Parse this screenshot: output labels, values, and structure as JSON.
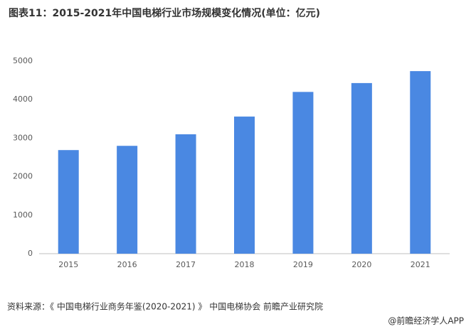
{
  "chart_data": {
    "type": "bar",
    "title": "图表11：2015-2021年中国电梯行业市场规模变化情况(单位：亿元)",
    "categories": [
      "2015",
      "2016",
      "2017",
      "2018",
      "2019",
      "2020",
      "2021"
    ],
    "values": [
      2690,
      2800,
      3100,
      3560,
      4200,
      4430,
      4740
    ],
    "color": "#4a88e2",
    "ylim": [
      0,
      5000
    ],
    "yticks": [
      0,
      1000,
      2000,
      3000,
      4000,
      5000
    ],
    "grid": false,
    "source": "资料来源：《 中国电梯行业商务年鉴(2020-2021) 》 中国电梯协会 前瞻产业研究院",
    "credit": "@前瞻经济学人APP"
  }
}
